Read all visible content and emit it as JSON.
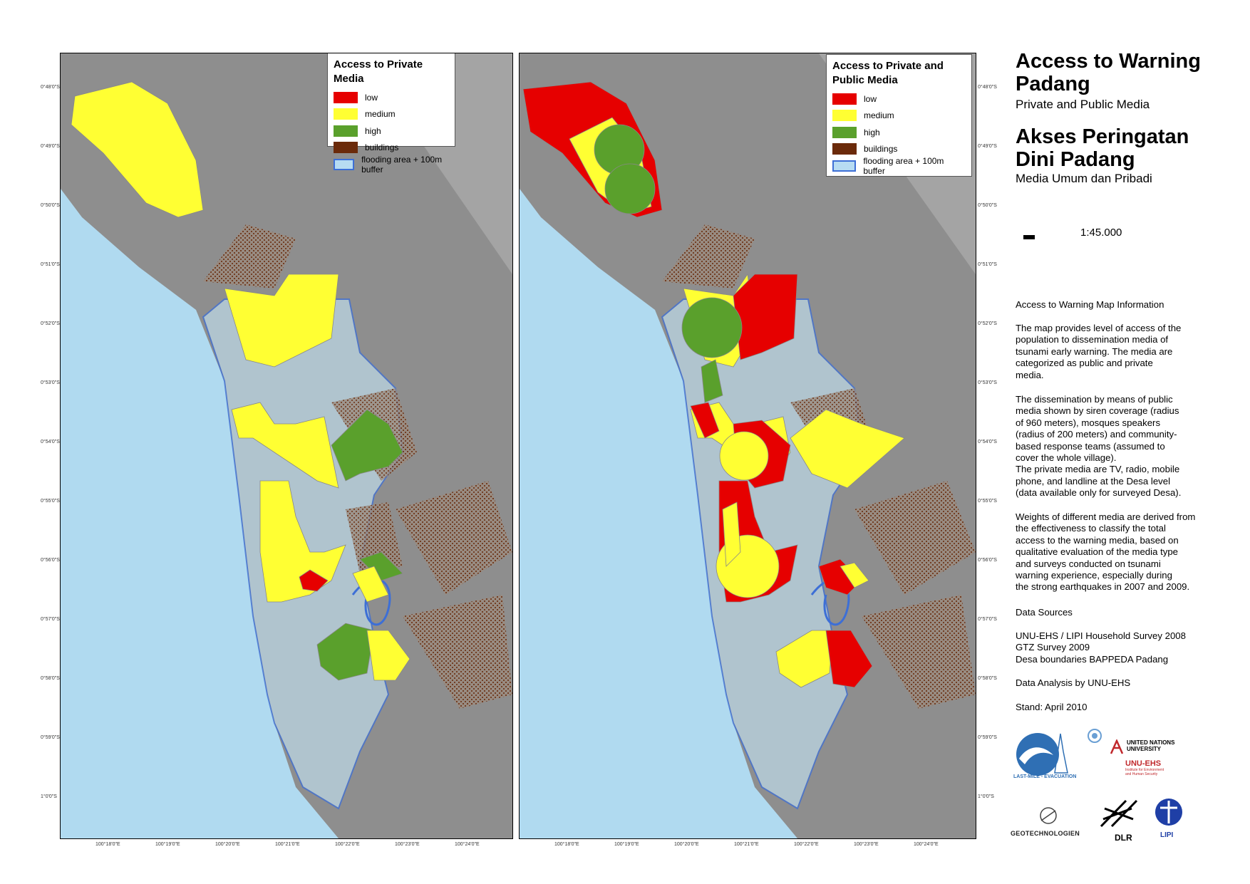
{
  "left_map": {
    "legend_title": "Access to Private Media",
    "legend": [
      {
        "label": "low",
        "color": "#e60000"
      },
      {
        "label": "medium",
        "color": "#ffff33"
      },
      {
        "label": "high",
        "color": "#5aa02c"
      },
      {
        "label": "buildings",
        "color": "#6b2a0a"
      },
      {
        "label": "flooding area + 100m buffer",
        "color": "#b7dcf2",
        "border": "#3d6fd6"
      }
    ],
    "lat_labels": [
      "0°48'0\"S",
      "0°49'0\"S",
      "0°50'0\"S",
      "0°51'0\"S",
      "0°52'0\"S",
      "0°53'0\"S",
      "0°54'0\"S",
      "0°55'0\"S",
      "0°56'0\"S",
      "0°57'0\"S",
      "0°58'0\"S",
      "0°59'0\"S",
      "1°0'0\"S"
    ],
    "lon_labels": [
      "100°18'0\"E",
      "100°19'0\"E",
      "100°20'0\"E",
      "100°21'0\"E",
      "100°22'0\"E",
      "100°23'0\"E",
      "100°24'0\"E"
    ]
  },
  "right_map": {
    "legend_title": "Access to Private and Public Media",
    "legend": [
      {
        "label": "low",
        "color": "#e60000"
      },
      {
        "label": "medium",
        "color": "#ffff33"
      },
      {
        "label": "high",
        "color": "#5aa02c"
      },
      {
        "label": "buildings",
        "color": "#6b2a0a"
      },
      {
        "label": "flooding area + 100m buffer",
        "color": "#b7dcf2",
        "border": "#3d6fd6"
      }
    ],
    "lat_labels": [
      "0°48'0\"S",
      "0°49'0\"S",
      "0°50'0\"S",
      "0°51'0\"S",
      "0°52'0\"S",
      "0°53'0\"S",
      "0°54'0\"S",
      "0°55'0\"S",
      "0°56'0\"S",
      "0°57'0\"S",
      "0°58'0\"S",
      "0°59'0\"S",
      "1°0'0\"S"
    ],
    "lon_labels": [
      "100°18'0\"E",
      "100°19'0\"E",
      "100°20'0\"E",
      "100°21'0\"E",
      "100°22'0\"E",
      "100°23'0\"E",
      "100°24'0\"E"
    ]
  },
  "sidebar": {
    "title_en_line1": "Access to Warning",
    "title_en_line2": "Padang",
    "subtitle_en": "Private and Public Media",
    "title_id_line1": "Akses Peringatan",
    "title_id_line2": "Dini Padang",
    "subtitle_id": "Media Umum dan Pribadi",
    "scale": "1:45.000",
    "info_heading": "Access to Warning Map Information",
    "para1": [
      "The map provides level of access of the",
      "population to dissemination  media of",
      "tsunami early warning. The media are",
      "categorized as public and private",
      "media."
    ],
    "para2": [
      "The dissemination by means of public",
      "media shown by siren coverage (radius",
      "of 960 meters), mosques speakers",
      "(radius of 200 meters) and community-",
      "based response teams (assumed to",
      "cover the whole village).",
      "The private media are TV, radio, mobile",
      "phone, and landline at the Desa level",
      "(data available only for surveyed Desa)."
    ],
    "para3": [
      "Weights of different media are derived from",
      "the effectiveness to classify the total",
      "access to the warning media, based on",
      "qualitative evaluation of the media type",
      "and surveys conducted on tsunami",
      "warning experience, especially during",
      "the strong earthquakes in 2007 and 2009."
    ],
    "sources_heading": "Data Sources",
    "sources": [
      "UNU-EHS / LIPI Household Survey 2008",
      "GTZ Survey 2009",
      "Desa boundaries BAPPEDA Padang"
    ],
    "analysis": "Data Analysis by UNU-EHS",
    "stand": "Stand: April 2010"
  },
  "logos": {
    "last_mile": "LAST-MILE - EVACUATION",
    "unu_line1": "UNITED NATIONS",
    "unu_line2": "UNIVERSITY",
    "unu_ehs": "UNU-EHS",
    "unu_ehs_sub1": "Institute for Environment",
    "unu_ehs_sub2": "and Human Security",
    "geotech": "GEOTECHNOLOGIEN",
    "dlr": "DLR",
    "lipi": "LIPI"
  }
}
